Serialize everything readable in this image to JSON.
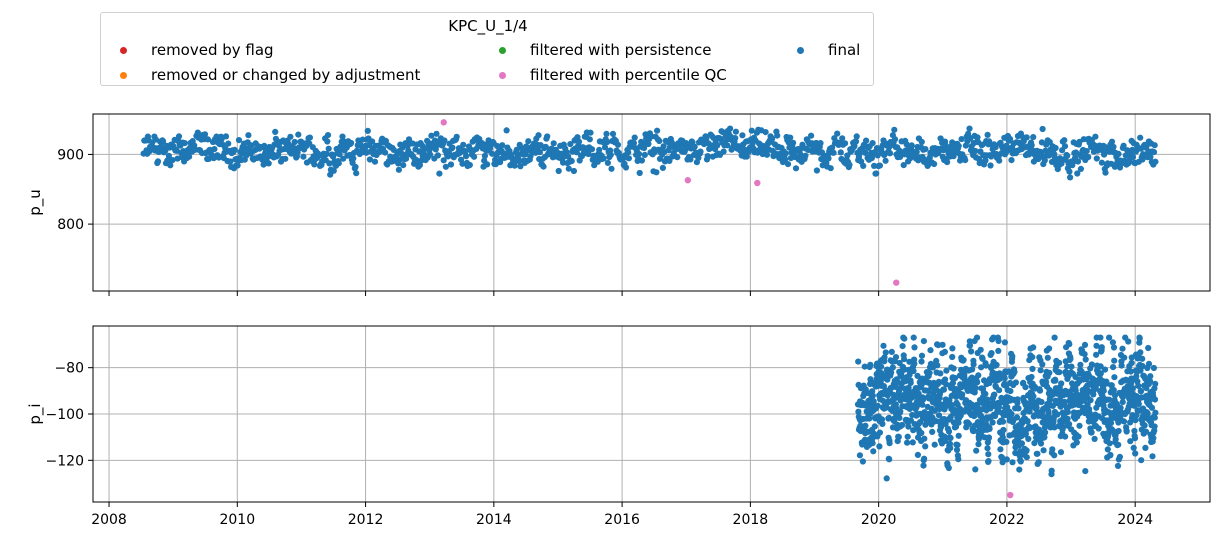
{
  "chart_data": [
    {
      "type": "scatter",
      "title": "",
      "xlabel": "",
      "ylabel": "p_u",
      "xlim": [
        "2007-10-01",
        "2025-03-01"
      ],
      "ylim": [
        704,
        958
      ],
      "x_tick_labels": [
        "2008",
        "2010",
        "2012",
        "2014",
        "2016",
        "2018",
        "2020",
        "2022",
        "2024"
      ],
      "y_ticks": [
        800,
        900
      ],
      "grid": true,
      "legend": {
        "title": "KPC_U_1/4",
        "placement": "top",
        "entries": [
          {
            "label": "removed by flag",
            "color": "#d62728"
          },
          {
            "label": "filtered with persistence",
            "color": "#2ca02c"
          },
          {
            "label": "final",
            "color": "#1f77b4"
          },
          {
            "label": "removed or changed by adjustment",
            "color": "#ff7f0e"
          },
          {
            "label": "filtered with percentile QC",
            "color": "#e377c2"
          }
        ]
      },
      "series": [
        {
          "name": "final",
          "color": "#1f77b4",
          "x_start": "2008-07-15",
          "x_end": "2024-04-25",
          "y_center": 905,
          "y_low": 867,
          "y_high": 937
        },
        {
          "name": "filtered with percentile QC",
          "color": "#e377c2",
          "points": [
            {
              "x": "2013-03-20",
              "y": 946
            },
            {
              "x": "2017-01-10",
              "y": 863
            },
            {
              "x": "2018-02-10",
              "y": 859
            },
            {
              "x": "2020-04-10",
              "y": 716
            }
          ]
        }
      ]
    },
    {
      "type": "scatter",
      "title": "",
      "xlabel": "",
      "ylabel": "p_i",
      "xlim": [
        "2007-10-01",
        "2025-03-01"
      ],
      "ylim": [
        -138,
        -62
      ],
      "x_tick_labels": [
        "2008",
        "2010",
        "2012",
        "2014",
        "2016",
        "2018",
        "2020",
        "2022",
        "2024"
      ],
      "y_ticks": [
        -120,
        -100,
        -80
      ],
      "grid": true,
      "series": [
        {
          "name": "final",
          "color": "#1f77b4",
          "x_start": "2019-09-05",
          "x_end": "2024-04-25",
          "y_center": -95,
          "y_low": -133,
          "y_high": -67
        },
        {
          "name": "filtered with percentile QC",
          "color": "#e377c2",
          "points": [
            {
              "x": "2022-01-20",
              "y": -135
            }
          ]
        }
      ]
    }
  ]
}
